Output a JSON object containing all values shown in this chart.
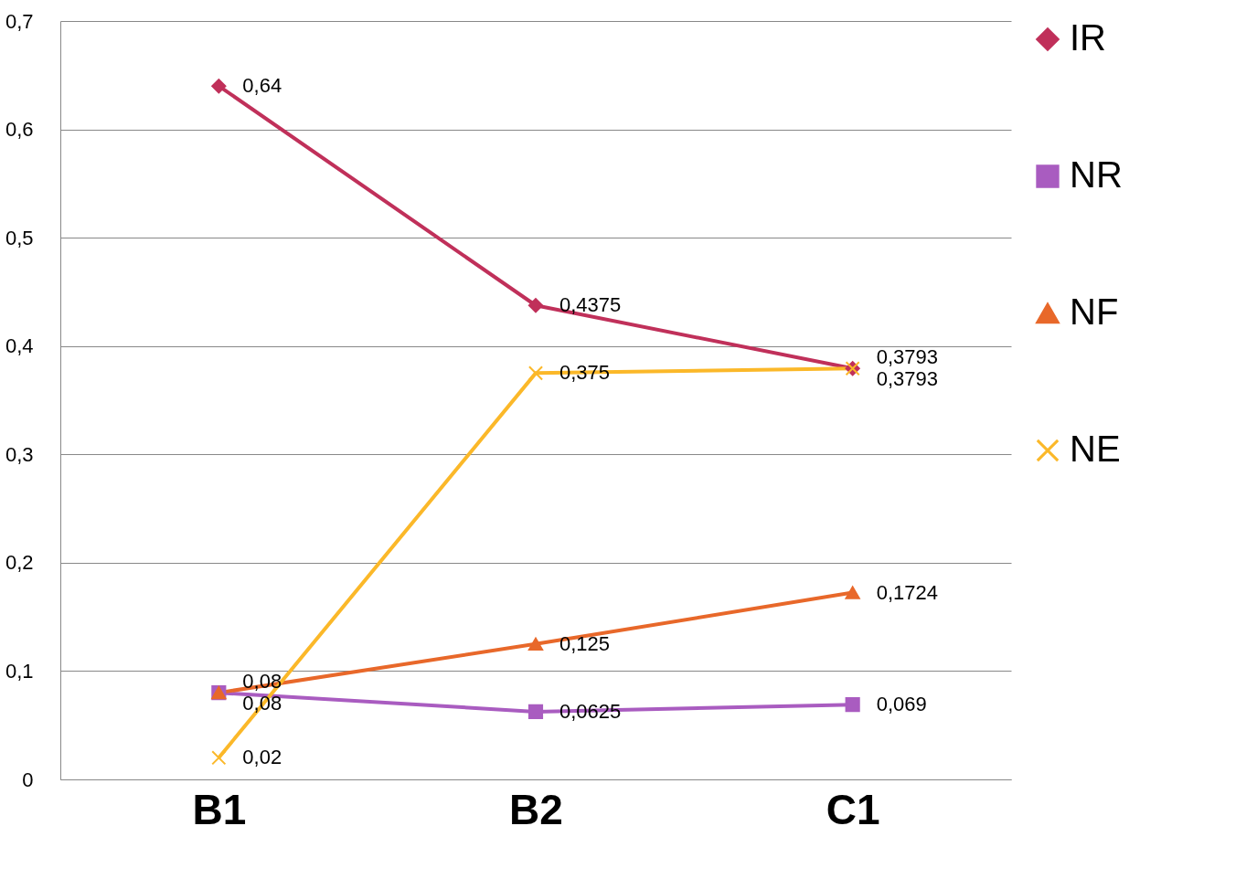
{
  "chart_data": {
    "type": "line",
    "categories": [
      "B1",
      "B2",
      "C1"
    ],
    "series": [
      {
        "name": "IR",
        "color": "#c0305a",
        "marker": "diamond",
        "values": [
          0.64,
          0.4375,
          0.3793
        ],
        "value_labels": [
          "0,64",
          "0,4375",
          "0,3793"
        ]
      },
      {
        "name": "NR",
        "color": "#a95cc0",
        "marker": "square",
        "values": [
          0.08,
          0.0625,
          0.069
        ],
        "value_labels": [
          "0,08",
          "0,0625",
          "0,069"
        ]
      },
      {
        "name": "NF",
        "color": "#e8682a",
        "marker": "triangle",
        "values": [
          0.08,
          0.125,
          0.1724
        ],
        "value_labels": [
          "0,08",
          "0,125",
          "0,1724"
        ]
      },
      {
        "name": "NE",
        "color": "#fbb829",
        "marker": "cross",
        "values": [
          0.02,
          0.375,
          0.3793
        ],
        "value_labels": [
          "0,02",
          "0,375",
          "0,3793"
        ]
      }
    ],
    "ylim": [
      0,
      0.7
    ],
    "yticks": [
      0,
      {
        "value": 0.1,
        "label": "0,1"
      },
      {
        "value": 0.2,
        "label": "0,2"
      },
      {
        "value": 0.3,
        "label": "0,3"
      },
      {
        "value": 0.4,
        "label": "0,4"
      },
      {
        "value": 0.5,
        "label": "0,5"
      },
      {
        "value": 0.6,
        "label": "0,6"
      },
      {
        "value": 0.7,
        "label": "0,7"
      }
    ],
    "grid": "y",
    "legend": "right",
    "line_style": "solid"
  }
}
